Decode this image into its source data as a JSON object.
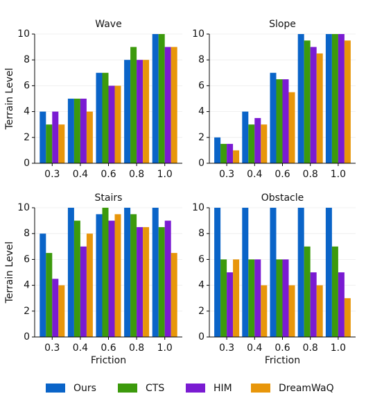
{
  "chart_data": [
    {
      "type": "bar",
      "title": "Wave",
      "ylabel": "Terrain Level",
      "categories": [
        "0.3",
        "0.4",
        "0.6",
        "0.8",
        "1.0"
      ],
      "ylim": [
        0,
        10
      ],
      "yticks": [
        0,
        2,
        4,
        6,
        8,
        10
      ],
      "grid": true,
      "series": [
        {
          "values": [
            4,
            5,
            7,
            8,
            10
          ]
        },
        {
          "values": [
            3,
            5,
            7,
            9,
            10
          ]
        },
        {
          "values": [
            4,
            5,
            6,
            8,
            9
          ]
        },
        {
          "values": [
            3,
            4,
            6,
            8,
            9
          ]
        }
      ]
    },
    {
      "type": "bar",
      "title": "Slope",
      "categories": [
        "0.3",
        "0.4",
        "0.6",
        "0.8",
        "1.0"
      ],
      "ylim": [
        0,
        10
      ],
      "yticks": [
        0,
        2,
        4,
        6,
        8,
        10
      ],
      "grid": true,
      "series": [
        {
          "values": [
            2,
            4,
            7,
            10,
            10
          ]
        },
        {
          "values": [
            1.5,
            3,
            6.5,
            9.5,
            10
          ]
        },
        {
          "values": [
            1.5,
            3.5,
            6.5,
            9,
            10
          ]
        },
        {
          "values": [
            1,
            3,
            5.5,
            8.5,
            9.5
          ]
        }
      ]
    },
    {
      "type": "bar",
      "title": "Stairs",
      "ylabel": "Terrain Level",
      "xlabel": "Friction",
      "categories": [
        "0.3",
        "0.4",
        "0.6",
        "0.8",
        "1.0"
      ],
      "ylim": [
        0,
        10
      ],
      "yticks": [
        0,
        2,
        4,
        6,
        8,
        10
      ],
      "grid": true,
      "series": [
        {
          "values": [
            8,
            10,
            9.5,
            10,
            10
          ]
        },
        {
          "values": [
            6.5,
            9,
            10,
            9.5,
            8.5
          ]
        },
        {
          "values": [
            4.5,
            7,
            9,
            8.5,
            9
          ]
        },
        {
          "values": [
            4,
            8,
            9.5,
            8.5,
            6.5
          ]
        }
      ]
    },
    {
      "type": "bar",
      "title": "Obstacle",
      "xlabel": "Friction",
      "categories": [
        "0.3",
        "0.4",
        "0.6",
        "0.8",
        "1.0"
      ],
      "ylim": [
        0,
        10
      ],
      "yticks": [
        0,
        2,
        4,
        6,
        8,
        10
      ],
      "grid": true,
      "series": [
        {
          "values": [
            10,
            10,
            10,
            10,
            10
          ]
        },
        {
          "values": [
            6,
            6,
            6,
            7,
            7
          ]
        },
        {
          "values": [
            5,
            6,
            6,
            5,
            5
          ]
        },
        {
          "values": [
            6,
            4,
            4,
            4,
            3
          ]
        }
      ]
    }
  ],
  "legend": [
    {
      "name": "Ours",
      "color": "#0a64c8"
    },
    {
      "name": "CTS",
      "color": "#3c9a0c"
    },
    {
      "name": "HIM",
      "color": "#7a1bd2"
    },
    {
      "name": "DreamWaQ",
      "color": "#e8960a"
    }
  ]
}
